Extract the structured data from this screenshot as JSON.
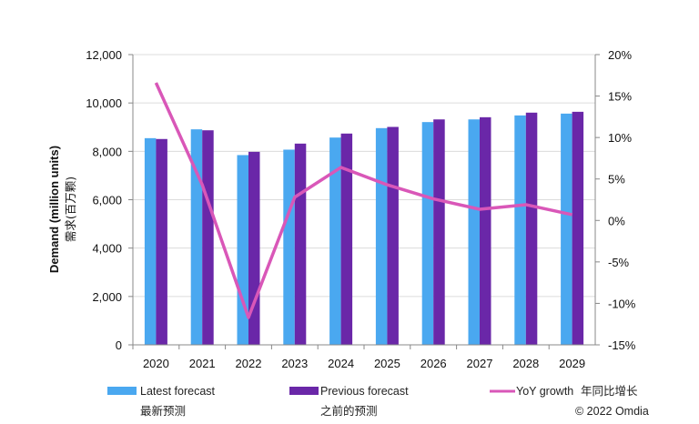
{
  "chart_data": {
    "type": "bar",
    "categories": [
      "2020",
      "2021",
      "2022",
      "2023",
      "2024",
      "2025",
      "2026",
      "2027",
      "2028",
      "2029"
    ],
    "series": [
      {
        "name": "Latest forecast",
        "name_cn": "最新预测",
        "type": "bar",
        "axis": "left",
        "color": "#4aa8f0",
        "values": [
          8545,
          8910,
          7845,
          8070,
          8570,
          8960,
          9210,
          9320,
          9485,
          9560
        ]
      },
      {
        "name": "Previous forecast",
        "name_cn": "之前的预测",
        "type": "bar",
        "axis": "left",
        "color": "#6a27a8",
        "values": [
          8510,
          8870,
          7980,
          8320,
          8735,
          9010,
          9320,
          9410,
          9600,
          9635
        ]
      },
      {
        "name": "YoY growth",
        "name_cn": "年同比增长",
        "type": "line",
        "axis": "right",
        "color": "#d957b8",
        "values": [
          16.6,
          4.3,
          -11.7,
          2.8,
          6.4,
          4.3,
          2.6,
          1.35,
          1.9,
          0.7
        ]
      }
    ],
    "ylabel": "Demand (million units)",
    "ylabel_cn": "需求(百万颗)",
    "ylim": [
      0,
      12000
    ],
    "yticks": [
      "0",
      "2,000",
      "4,000",
      "6,000",
      "8,000",
      "10,000",
      "12,000"
    ],
    "y2lim": [
      -15,
      20
    ],
    "y2ticks": [
      "-15%",
      "-10%",
      "-5%",
      "0%",
      "5%",
      "10%",
      "15%",
      "20%"
    ],
    "grid": true,
    "legend_placement": "bottom",
    "copyright": "© 2022 Omdia"
  }
}
